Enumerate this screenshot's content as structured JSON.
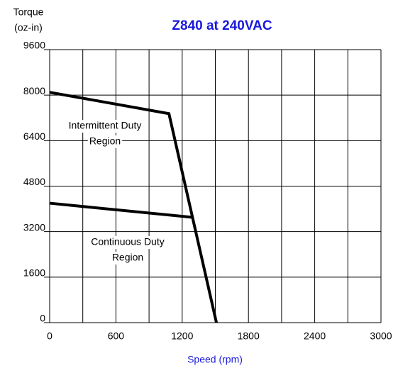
{
  "chart_data": {
    "type": "line",
    "title": "Z840 at 240VAC",
    "xlabel": "Speed (rpm)",
    "ylabel": [
      "Torque",
      "(oz-in)"
    ],
    "series": [
      {
        "name": "Intermittent Duty Region",
        "color": "#000000",
        "x": [
          0,
          1080,
          1510
        ],
        "values": [
          8100,
          7350,
          0
        ]
      },
      {
        "name": "Continuous Duty Region",
        "color": "#000000",
        "x": [
          0,
          1300
        ],
        "values": [
          4200,
          3700
        ]
      }
    ],
    "annotations": [
      [
        "Intermittent Duty",
        "Region"
      ],
      [
        "Continuous Duty",
        "Region"
      ]
    ],
    "xlim": [
      0,
      3000
    ],
    "xticks": [
      0,
      600,
      1200,
      1800,
      2400,
      3000
    ],
    "xminorticks": [
      300,
      900,
      1500,
      2100,
      2700
    ],
    "ylim": [
      0,
      9600
    ],
    "yticks": [
      0,
      1600,
      3200,
      4800,
      6400,
      8000,
      9600
    ],
    "grid": true
  }
}
